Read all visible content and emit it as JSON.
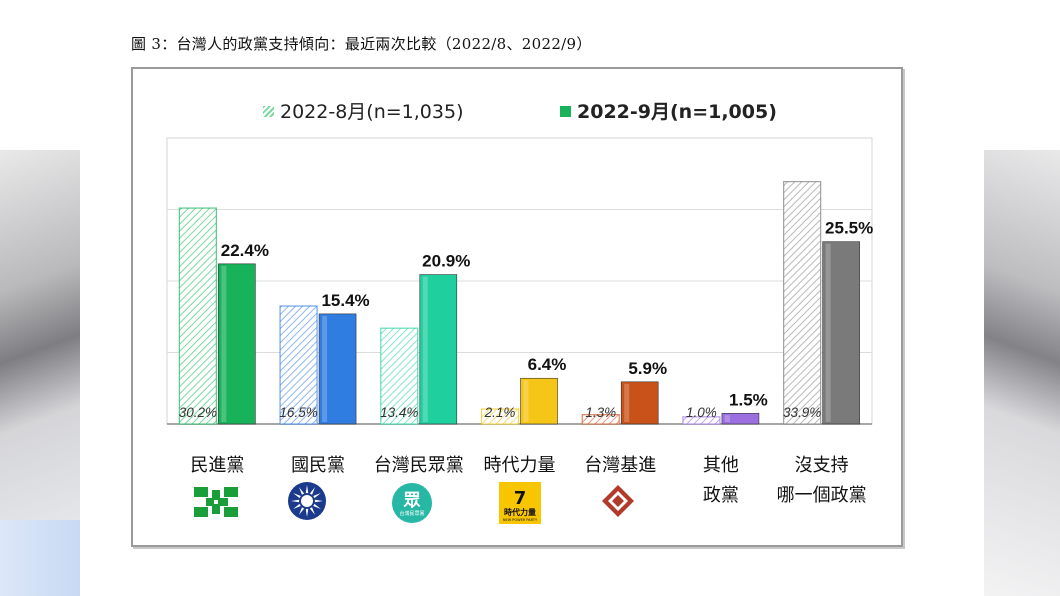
{
  "figure_title": "圖 3：台灣人的政黨支持傾向：最近兩次比較（2022/8、2022/9）",
  "colors": {
    "green": "#17b25a",
    "blue": "#2f7de1",
    "teal": "#1fcf9e",
    "yellow": "#f5c518",
    "orange": "#c9521a",
    "purple": "#9b6fe0",
    "gray": "#7a7a7a"
  },
  "chart_data": {
    "type": "bar",
    "categories": [
      "民進黨",
      "國民黨",
      "台灣民眾黨",
      "時代力量",
      "台灣基進",
      "其他\n政黨",
      "沒支持\n哪一個政黨"
    ],
    "series": [
      {
        "name": "2022-8月(n=1,035)",
        "values": [
          30.2,
          16.5,
          13.4,
          2.1,
          1.3,
          1.0,
          33.9
        ],
        "labels": [
          "30.2%",
          "16.5%",
          "13.4%",
          "2.1%",
          "1.3%",
          "1.0%",
          "33.9%"
        ],
        "style": "hatched"
      },
      {
        "name": "2022-9月(n=1,005)",
        "values": [
          22.4,
          15.4,
          20.9,
          6.4,
          5.9,
          1.5,
          25.5
        ],
        "labels": [
          "22.4%",
          "15.4%",
          "20.9%",
          "6.4%",
          "5.9%",
          "1.5%",
          "25.5%"
        ],
        "style": "solid"
      }
    ],
    "ylim": [
      0,
      40
    ],
    "grid": true,
    "legend_position": "top"
  },
  "logos": [
    {
      "name": "dpp-logo",
      "icon": "dpp-flag-icon"
    },
    {
      "name": "kmt-logo",
      "icon": "white-sun-icon"
    },
    {
      "name": "tpp-logo",
      "icon": "tpp-people-icon",
      "text_main": "眾",
      "text_sub": "台灣民眾黨"
    },
    {
      "name": "npp-logo",
      "icon": "npp-icon",
      "text_main": "時代力量",
      "text_sub": "NEW POWER PARTY"
    },
    {
      "name": "tsp-logo",
      "icon": "diamond-icon"
    }
  ]
}
